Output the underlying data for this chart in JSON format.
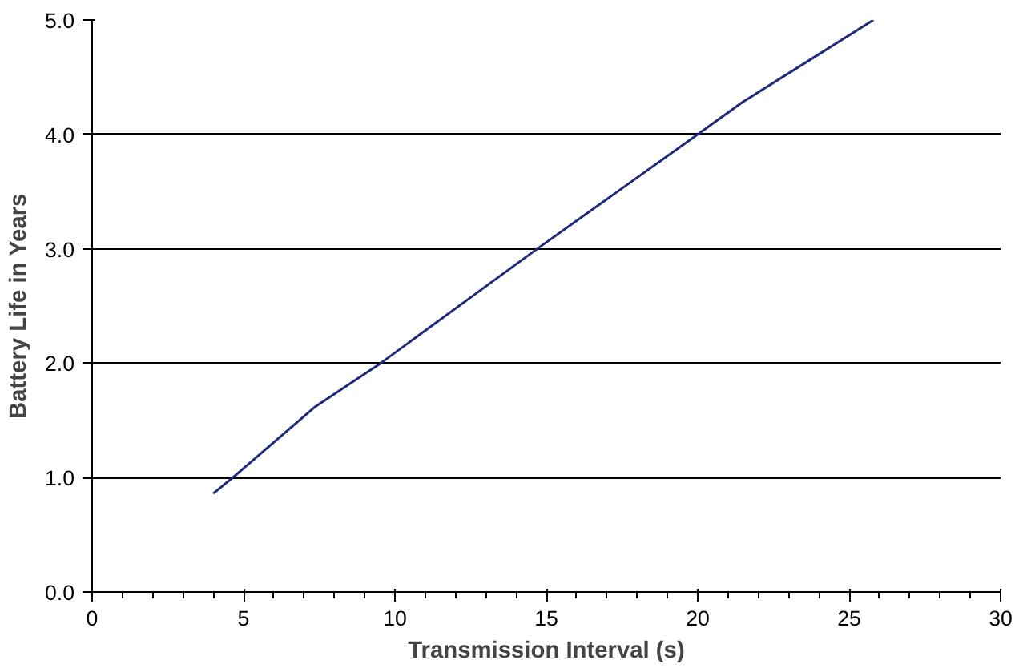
{
  "chart_data": {
    "type": "line",
    "xlabel": "Transmission Interval (s)",
    "ylabel": "Battery Life in Years",
    "series": [
      {
        "color": "#1f2a7a",
        "x": [
          4.0,
          4.65,
          7.37,
          9.53,
          14.7,
          20.0,
          21.47,
          25.8
        ],
        "values": [
          0.86,
          1.0,
          1.62,
          2.0,
          3.0,
          4.0,
          4.28,
          5.0
        ]
      }
    ],
    "xlim": [
      0,
      30
    ],
    "ylim": [
      0,
      5
    ],
    "xticks": [
      0,
      5,
      10,
      15,
      20,
      25,
      30
    ],
    "yticks": [
      {
        "value": 0,
        "label": "0.0"
      },
      {
        "value": 1,
        "label": "1.0"
      },
      {
        "value": 2,
        "label": "2.0"
      },
      {
        "value": 3,
        "label": "3.0"
      },
      {
        "value": 4,
        "label": "4.0"
      },
      {
        "value": 5,
        "label": "5.0"
      }
    ],
    "grid": "y",
    "marker": "none",
    "line_style": "solid"
  }
}
